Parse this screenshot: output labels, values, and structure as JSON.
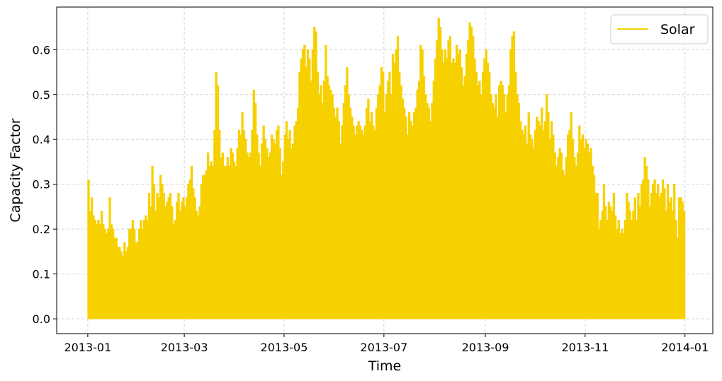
{
  "chart_data": {
    "type": "area",
    "title": "",
    "xlabel": "Time",
    "ylabel": "Capacity Factor",
    "x_tick_labels": [
      "2013-01",
      "2013-03",
      "2013-05",
      "2013-07",
      "2013-09",
      "2013-11",
      "2014-01"
    ],
    "x_tick_dates": [
      "2013-01-01",
      "2013-03-01",
      "2013-05-01",
      "2013-07-01",
      "2013-09-01",
      "2013-11-01",
      "2014-01-01"
    ],
    "y_ticks": [
      0.0,
      0.1,
      0.2,
      0.3,
      0.4,
      0.5,
      0.6
    ],
    "y_tick_labels": [
      "0.0",
      "0.1",
      "0.2",
      "0.3",
      "0.4",
      "0.5",
      "0.6"
    ],
    "xlim": [
      "2012-12-13",
      "2014-01-18"
    ],
    "ylim": [
      -0.033,
      0.695
    ],
    "grid": true,
    "legend": {
      "position": "top-right",
      "entries": [
        "Solar"
      ]
    },
    "series": [
      {
        "name": "Solar",
        "color": "#f7d000",
        "daily_max_first_date": "2013-01-01",
        "daily_max": [
          0.31,
          0.24,
          0.27,
          0.23,
          0.22,
          0.21,
          0.22,
          0.21,
          0.24,
          0.21,
          0.2,
          0.19,
          0.2,
          0.27,
          0.21,
          0.2,
          0.18,
          0.18,
          0.16,
          0.16,
          0.15,
          0.14,
          0.17,
          0.15,
          0.16,
          0.2,
          0.2,
          0.22,
          0.2,
          0.17,
          0.17,
          0.2,
          0.22,
          0.2,
          0.22,
          0.23,
          0.22,
          0.28,
          0.25,
          0.34,
          0.3,
          0.24,
          0.28,
          0.27,
          0.32,
          0.3,
          0.28,
          0.25,
          0.26,
          0.27,
          0.28,
          0.25,
          0.21,
          0.22,
          0.26,
          0.28,
          0.24,
          0.26,
          0.27,
          0.25,
          0.27,
          0.3,
          0.31,
          0.34,
          0.29,
          0.27,
          0.24,
          0.23,
          0.25,
          0.3,
          0.32,
          0.32,
          0.33,
          0.37,
          0.34,
          0.35,
          0.34,
          0.42,
          0.55,
          0.52,
          0.42,
          0.36,
          0.37,
          0.34,
          0.34,
          0.36,
          0.34,
          0.38,
          0.37,
          0.35,
          0.34,
          0.38,
          0.42,
          0.41,
          0.46,
          0.42,
          0.4,
          0.37,
          0.36,
          0.37,
          0.42,
          0.51,
          0.48,
          0.41,
          0.37,
          0.34,
          0.39,
          0.43,
          0.4,
          0.38,
          0.36,
          0.37,
          0.41,
          0.4,
          0.39,
          0.42,
          0.43,
          0.38,
          0.32,
          0.35,
          0.41,
          0.44,
          0.4,
          0.42,
          0.38,
          0.39,
          0.43,
          0.44,
          0.47,
          0.55,
          0.58,
          0.6,
          0.61,
          0.56,
          0.6,
          0.58,
          0.53,
          0.6,
          0.65,
          0.64,
          0.55,
          0.5,
          0.52,
          0.48,
          0.53,
          0.61,
          0.54,
          0.52,
          0.51,
          0.5,
          0.47,
          0.45,
          0.47,
          0.44,
          0.39,
          0.43,
          0.48,
          0.52,
          0.56,
          0.5,
          0.47,
          0.45,
          0.43,
          0.41,
          0.43,
          0.44,
          0.43,
          0.42,
          0.41,
          0.43,
          0.47,
          0.49,
          0.44,
          0.46,
          0.43,
          0.42,
          0.47,
          0.5,
          0.52,
          0.56,
          0.55,
          0.46,
          0.5,
          0.53,
          0.55,
          0.5,
          0.59,
          0.57,
          0.6,
          0.63,
          0.55,
          0.52,
          0.49,
          0.47,
          0.45,
          0.41,
          0.46,
          0.44,
          0.43,
          0.46,
          0.47,
          0.51,
          0.53,
          0.61,
          0.6,
          0.54,
          0.5,
          0.48,
          0.47,
          0.44,
          0.48,
          0.53,
          0.58,
          0.62,
          0.67,
          0.65,
          0.6,
          0.57,
          0.6,
          0.58,
          0.62,
          0.63,
          0.57,
          0.58,
          0.57,
          0.61,
          0.59,
          0.6,
          0.56,
          0.52,
          0.54,
          0.59,
          0.62,
          0.66,
          0.65,
          0.63,
          0.58,
          0.55,
          0.52,
          0.53,
          0.5,
          0.55,
          0.58,
          0.6,
          0.57,
          0.55,
          0.5,
          0.48,
          0.47,
          0.5,
          0.45,
          0.52,
          0.53,
          0.52,
          0.5,
          0.46,
          0.5,
          0.52,
          0.6,
          0.63,
          0.64,
          0.55,
          0.5,
          0.48,
          0.44,
          0.42,
          0.41,
          0.43,
          0.39,
          0.46,
          0.41,
          0.4,
          0.38,
          0.42,
          0.45,
          0.44,
          0.43,
          0.47,
          0.42,
          0.44,
          0.5,
          0.46,
          0.4,
          0.44,
          0.41,
          0.37,
          0.34,
          0.36,
          0.38,
          0.37,
          0.33,
          0.32,
          0.36,
          0.41,
          0.42,
          0.46,
          0.4,
          0.36,
          0.34,
          0.37,
          0.43,
          0.4,
          0.41,
          0.38,
          0.4,
          0.39,
          0.37,
          0.38,
          0.34,
          0.32,
          0.28,
          0.28,
          0.2,
          0.22,
          0.24,
          0.3,
          0.25,
          0.22,
          0.26,
          0.25,
          0.24,
          0.28,
          0.23,
          0.2,
          0.22,
          0.19,
          0.2,
          0.19,
          0.22,
          0.28,
          0.26,
          0.24,
          0.22,
          0.24,
          0.27,
          0.22,
          0.28,
          0.25,
          0.3,
          0.31,
          0.36,
          0.34,
          0.31,
          0.25,
          0.28,
          0.3,
          0.31,
          0.28,
          0.3,
          0.27,
          0.28,
          0.31,
          0.29,
          0.24,
          0.3,
          0.26,
          0.27,
          0.24,
          0.3,
          0.22,
          0.18,
          0.27,
          0.27,
          0.26,
          0.24
        ]
      }
    ]
  }
}
